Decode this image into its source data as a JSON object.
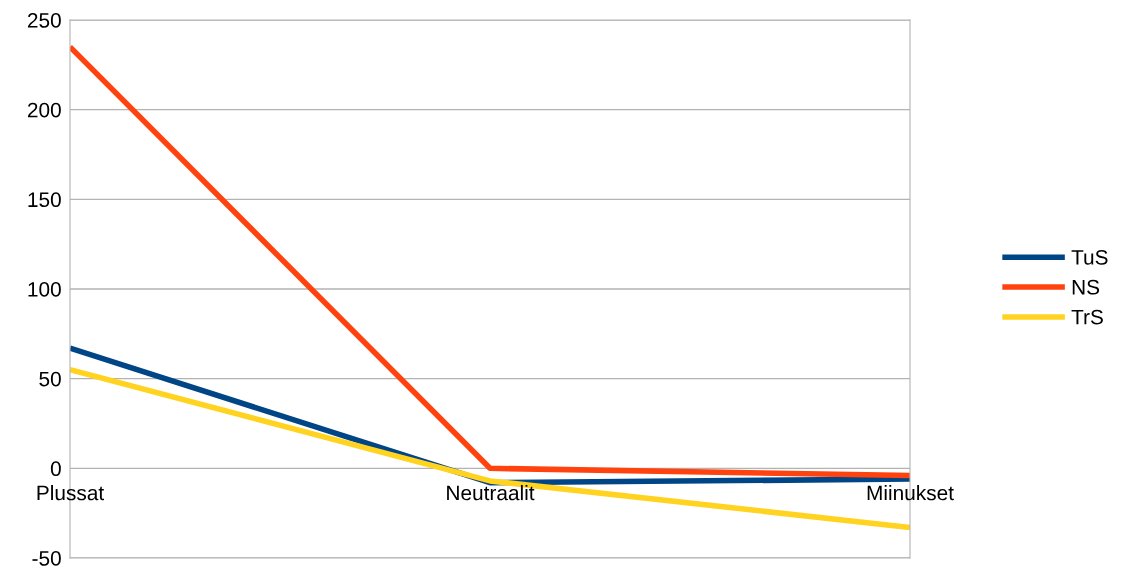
{
  "chart_data": {
    "type": "line",
    "categories": [
      "Plussat",
      "Neutraalit",
      "Miinukset"
    ],
    "series": [
      {
        "name": "TuS",
        "color": "#004586",
        "values": [
          67,
          -8,
          -6
        ]
      },
      {
        "name": "NS",
        "color": "#ff420e",
        "values": [
          235,
          0,
          -4
        ]
      },
      {
        "name": "TrS",
        "color": "#ffd320",
        "values": [
          55,
          -7,
          -33
        ]
      }
    ],
    "ylim": [
      -50,
      250
    ],
    "yticks": [
      -50,
      0,
      50,
      100,
      150,
      200,
      250
    ],
    "grid": "y",
    "legend": "right",
    "marker": "none",
    "line_style": "solid"
  }
}
